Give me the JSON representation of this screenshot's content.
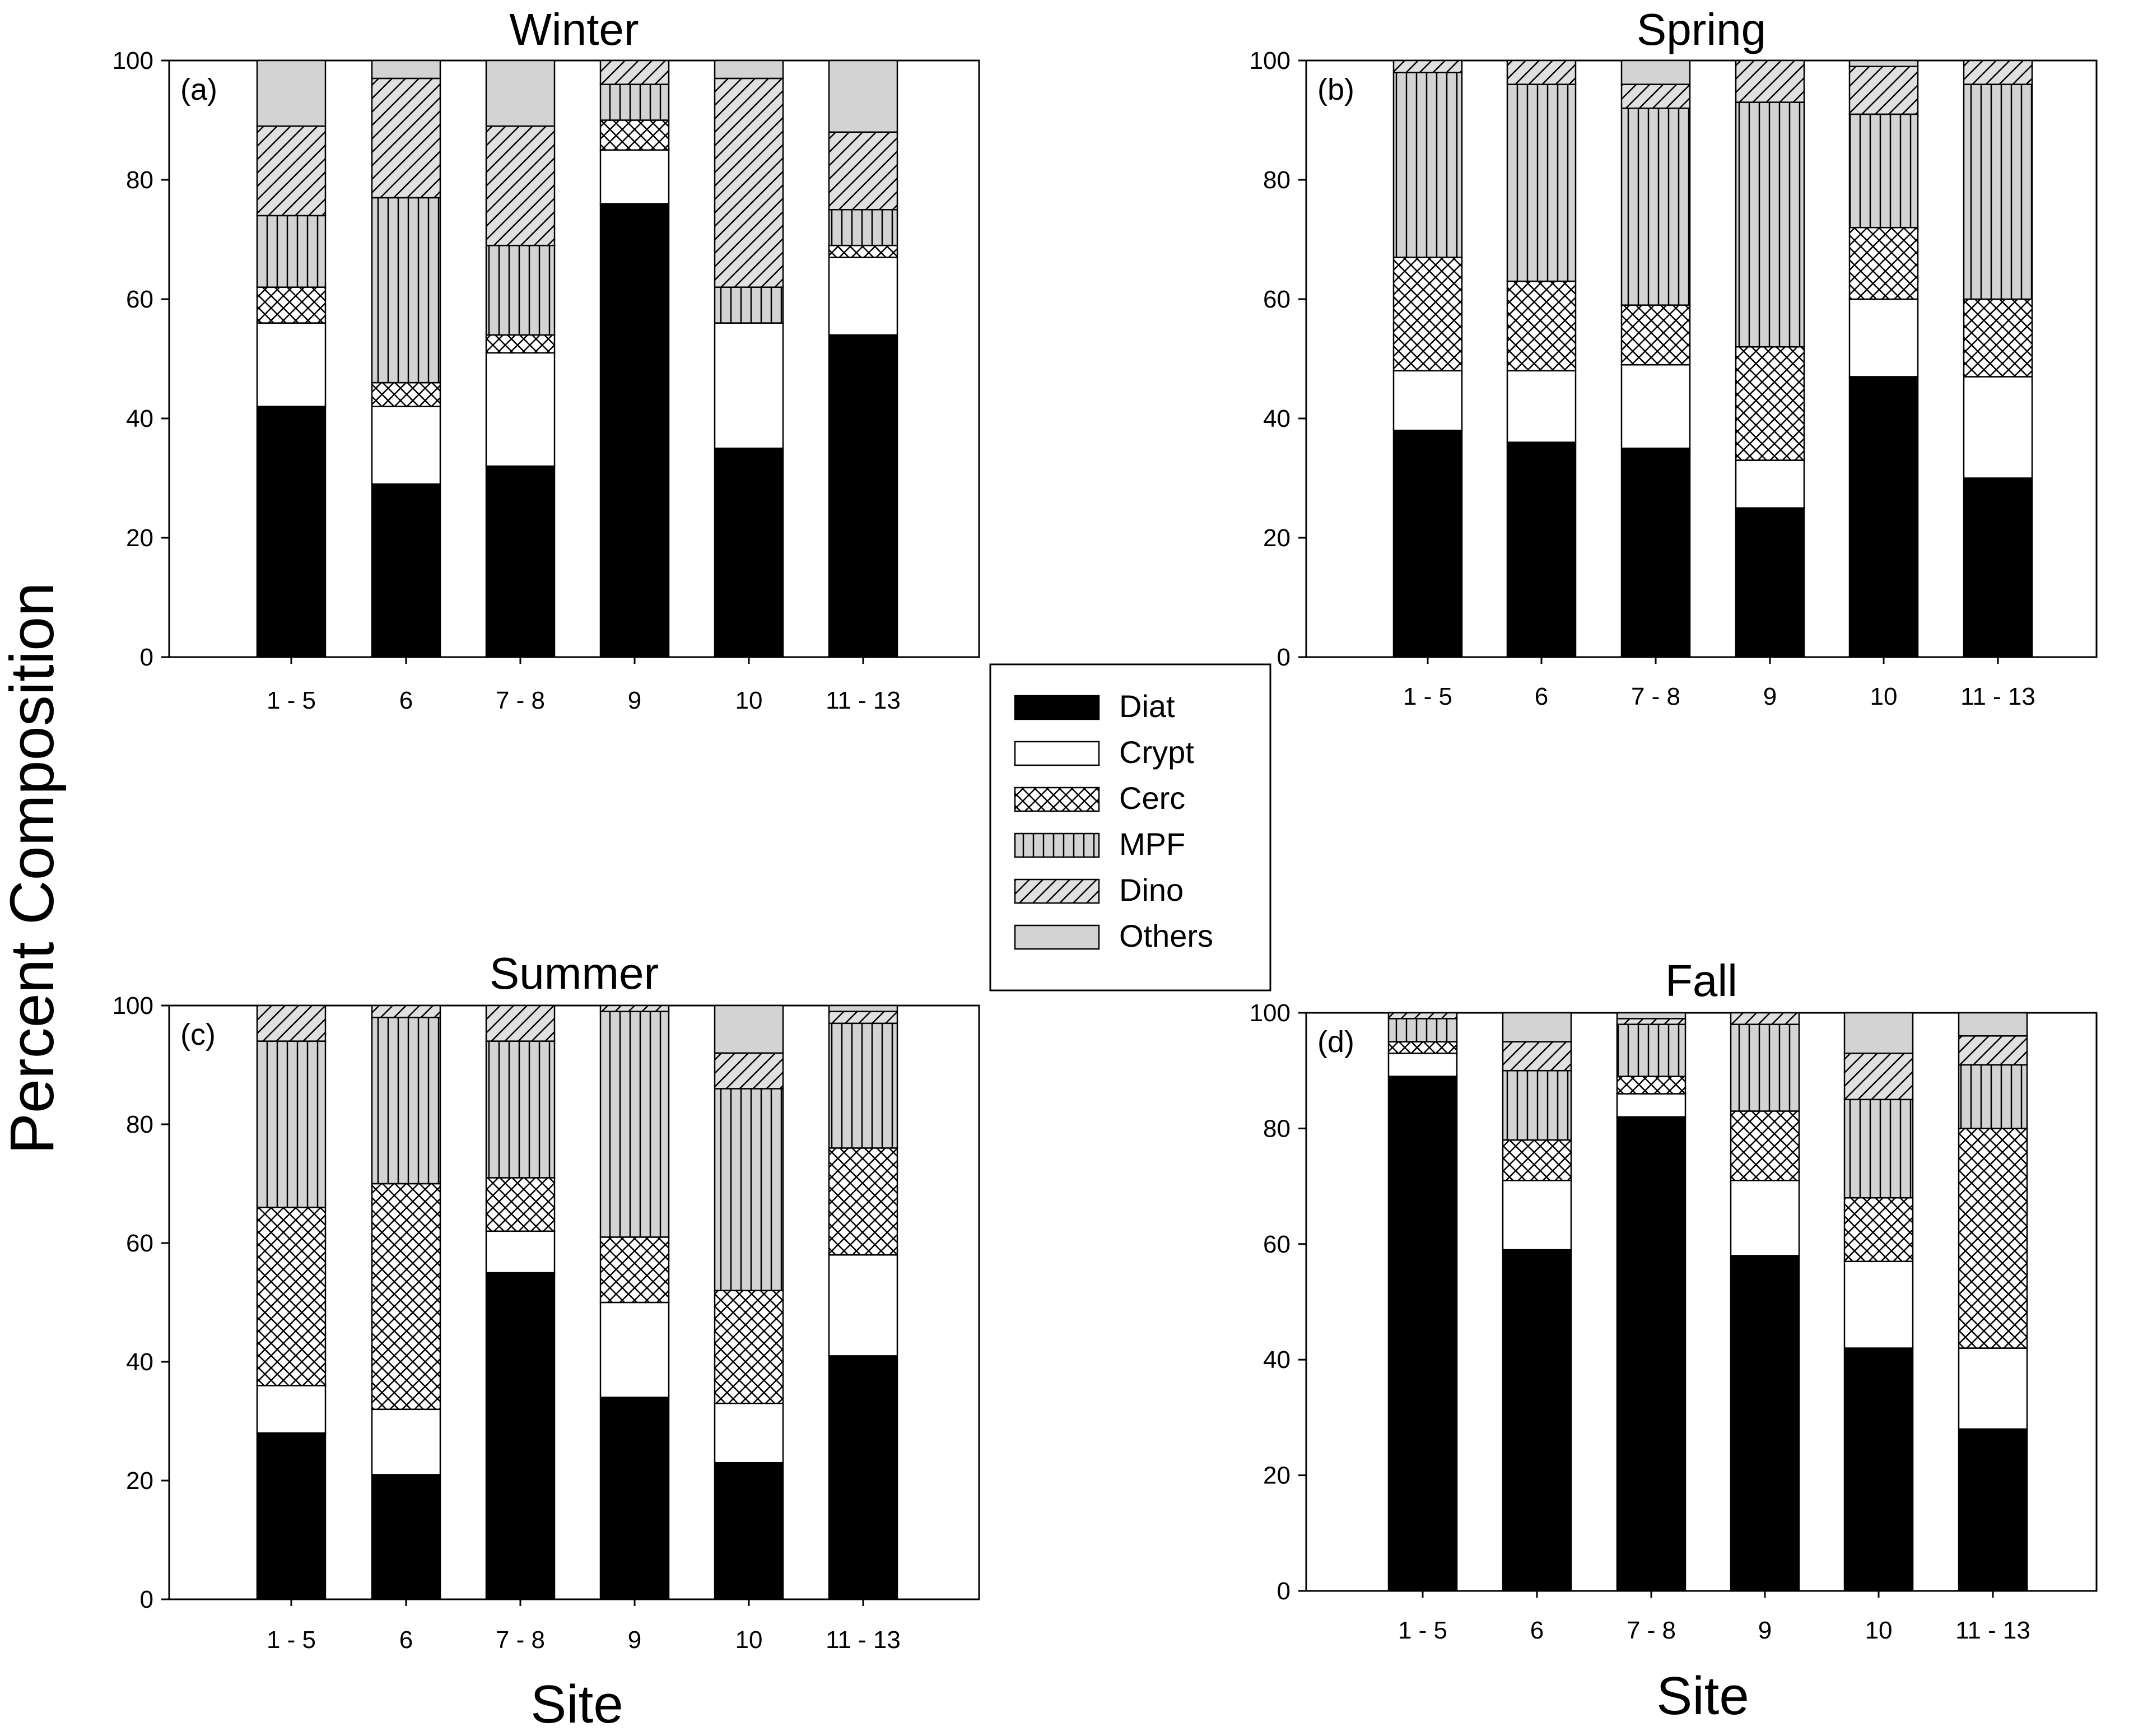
{
  "figure": {
    "ylabel": "Percent Composition",
    "xlabel": "Site",
    "legend": {
      "placement": "center",
      "items": [
        {
          "key": "diat",
          "label": "Diat"
        },
        {
          "key": "crypt",
          "label": "Crypt"
        },
        {
          "key": "cerc",
          "label": "Cerc"
        },
        {
          "key": "mpf",
          "label": "MPF"
        },
        {
          "key": "dino",
          "label": "Dino"
        },
        {
          "key": "others",
          "label": "Others"
        }
      ]
    }
  },
  "colors": {
    "diat": "#000000",
    "crypt": "#ffffff",
    "cerc": "#ffffff",
    "mpf": "#d3d3d3",
    "dino": "#e0e0e0",
    "others": "#d3d3d3",
    "stroke": "#000000"
  },
  "chart_data": [
    {
      "type": "bar",
      "stacked": true,
      "title": "Winter",
      "panel_label": "(a)",
      "xlabel": "",
      "ylabel": "",
      "ylim": [
        0,
        100
      ],
      "yticks": [
        0,
        20,
        40,
        60,
        80,
        100
      ],
      "categories": [
        "1 - 5",
        "6",
        "7 - 8",
        "9",
        "10",
        "11 - 13"
      ],
      "series": [
        {
          "name": "Diat",
          "key": "diat",
          "values": [
            42,
            29,
            32,
            76,
            35,
            54
          ]
        },
        {
          "name": "Crypt",
          "key": "crypt",
          "values": [
            14,
            13,
            19,
            9,
            21,
            13
          ]
        },
        {
          "name": "Cerc",
          "key": "cerc",
          "values": [
            6,
            4,
            3,
            5,
            0,
            2
          ]
        },
        {
          "name": "MPF",
          "key": "mpf",
          "values": [
            12,
            31,
            15,
            6,
            6,
            6
          ]
        },
        {
          "name": "Dino",
          "key": "dino",
          "values": [
            15,
            20,
            20,
            4,
            35,
            13
          ]
        },
        {
          "name": "Others",
          "key": "others",
          "values": [
            11,
            3,
            11,
            0,
            3,
            12
          ]
        }
      ]
    },
    {
      "type": "bar",
      "stacked": true,
      "title": "Spring",
      "panel_label": "(b)",
      "xlabel": "",
      "ylabel": "",
      "ylim": [
        0,
        100
      ],
      "yticks": [
        0,
        20,
        40,
        60,
        80,
        100
      ],
      "categories": [
        "1 - 5",
        "6",
        "7 - 8",
        "9",
        "10",
        "11 - 13"
      ],
      "series": [
        {
          "name": "Diat",
          "key": "diat",
          "values": [
            38,
            36,
            35,
            25,
            47,
            30
          ]
        },
        {
          "name": "Crypt",
          "key": "crypt",
          "values": [
            10,
            12,
            14,
            8,
            13,
            17
          ]
        },
        {
          "name": "Cerc",
          "key": "cerc",
          "values": [
            19,
            15,
            10,
            19,
            12,
            13
          ]
        },
        {
          "name": "MPF",
          "key": "mpf",
          "values": [
            31,
            33,
            33,
            41,
            19,
            36
          ]
        },
        {
          "name": "Dino",
          "key": "dino",
          "values": [
            2,
            4,
            4,
            7,
            8,
            4
          ]
        },
        {
          "name": "Others",
          "key": "others",
          "values": [
            0,
            0,
            4,
            0,
            1,
            0
          ]
        }
      ]
    },
    {
      "type": "bar",
      "stacked": true,
      "title": "Summer",
      "panel_label": "(c)",
      "xlabel": "",
      "ylabel": "",
      "ylim": [
        0,
        100
      ],
      "yticks": [
        0,
        20,
        40,
        60,
        80,
        100
      ],
      "categories": [
        "1 - 5",
        "6",
        "7 - 8",
        "9",
        "10",
        "11 - 13"
      ],
      "series": [
        {
          "name": "Diat",
          "key": "diat",
          "values": [
            28,
            21,
            55,
            34,
            23,
            41
          ]
        },
        {
          "name": "Crypt",
          "key": "crypt",
          "values": [
            8,
            11,
            7,
            16,
            10,
            17
          ]
        },
        {
          "name": "Cerc",
          "key": "cerc",
          "values": [
            30,
            38,
            9,
            11,
            19,
            18
          ]
        },
        {
          "name": "MPF",
          "key": "mpf",
          "values": [
            28,
            28,
            23,
            38,
            34,
            21
          ]
        },
        {
          "name": "Dino",
          "key": "dino",
          "values": [
            6,
            2,
            6,
            1,
            6,
            2
          ]
        },
        {
          "name": "Others",
          "key": "others",
          "values": [
            0,
            0,
            0,
            0,
            8,
            1
          ]
        }
      ]
    },
    {
      "type": "bar",
      "stacked": true,
      "title": "Fall",
      "panel_label": "(d)",
      "xlabel": "Site",
      "ylabel": "",
      "ylim": [
        0,
        100
      ],
      "yticks": [
        0,
        20,
        40,
        60,
        80,
        100
      ],
      "categories": [
        "1 - 5",
        "6",
        "7 - 8",
        "9",
        "10",
        "11 - 13"
      ],
      "series": [
        {
          "name": "Diat",
          "key": "diat",
          "values": [
            89,
            59,
            82,
            58,
            42,
            28
          ]
        },
        {
          "name": "Crypt",
          "key": "crypt",
          "values": [
            4,
            12,
            4,
            13,
            15,
            14
          ]
        },
        {
          "name": "Cerc",
          "key": "cerc",
          "values": [
            2,
            7,
            3,
            12,
            11,
            38
          ]
        },
        {
          "name": "MPF",
          "key": "mpf",
          "values": [
            4,
            12,
            9,
            15,
            17,
            11
          ]
        },
        {
          "name": "Dino",
          "key": "dino",
          "values": [
            1,
            5,
            1,
            2,
            8,
            5
          ]
        },
        {
          "name": "Others",
          "key": "others",
          "values": [
            0,
            5,
            1,
            0,
            7,
            4
          ]
        }
      ]
    }
  ]
}
